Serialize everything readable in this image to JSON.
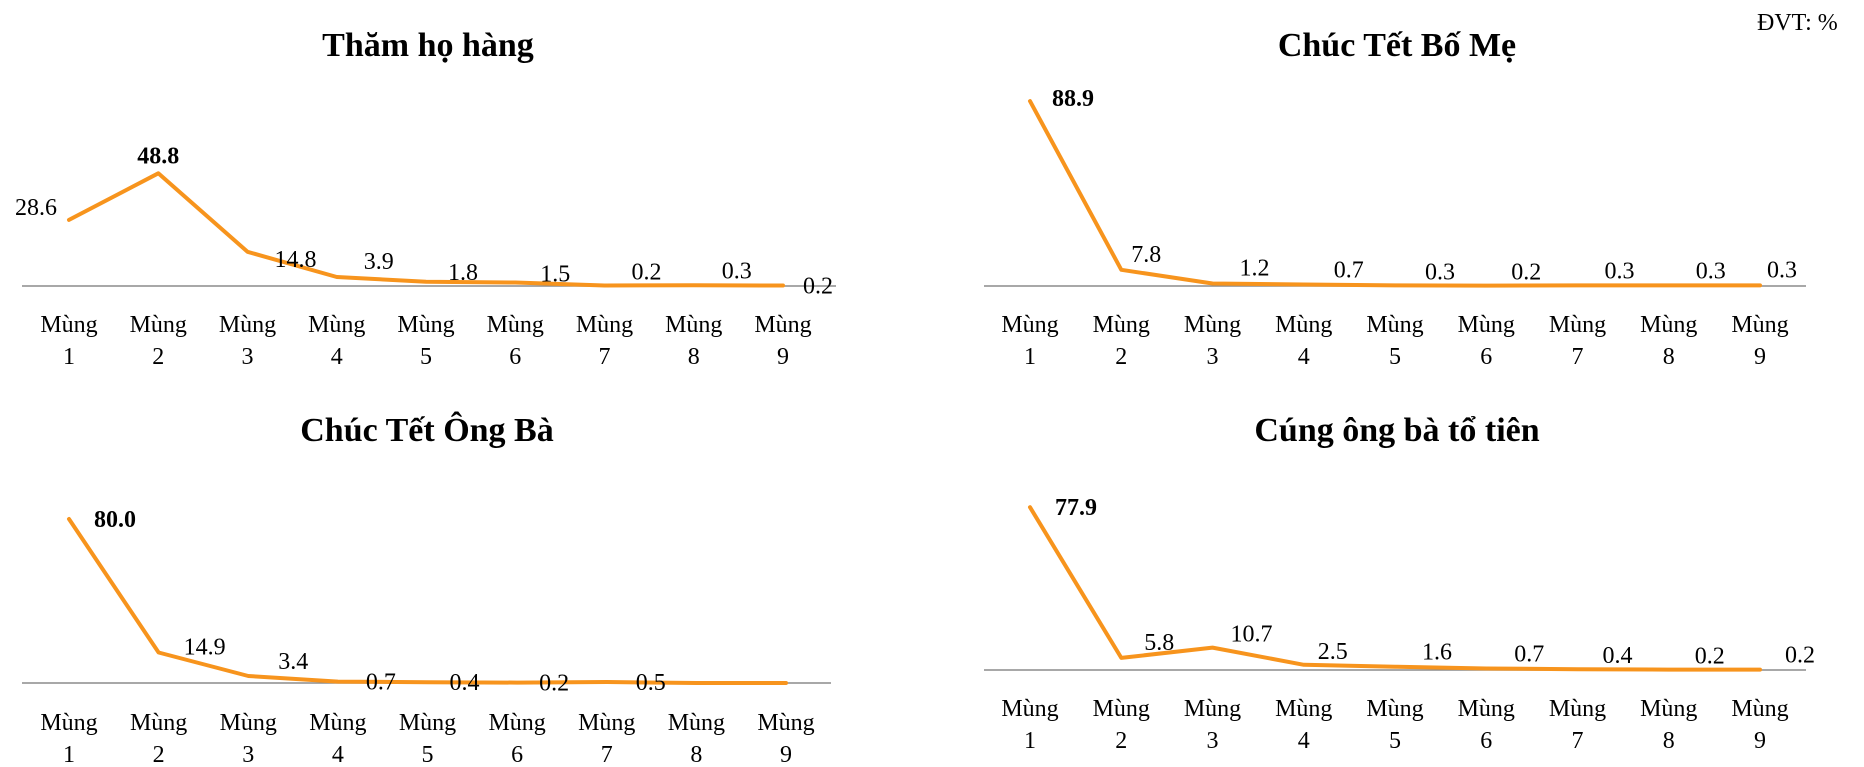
{
  "unit_label": "ĐVT: %",
  "colors": {
    "line": "#F7941D",
    "axis": "#8C8C8C",
    "text": "#000000"
  },
  "chart_data": [
    {
      "type": "line",
      "title": "Thăm họ hàng",
      "categories": [
        "Mùng 1",
        "Mùng 2",
        "Mùng 3",
        "Mùng 4",
        "Mùng 5",
        "Mùng 6",
        "Mùng 7",
        "Mùng 8",
        "Mùng 9"
      ],
      "values": [
        28.6,
        48.8,
        14.8,
        3.9,
        1.8,
        1.5,
        0.2,
        0.3,
        0.2
      ],
      "labels": [
        "28.6",
        "48.8",
        "14.8",
        "3.9",
        "1.8",
        "1.5",
        "0.2",
        "0.3",
        "0.2"
      ],
      "max_index": 1
    },
    {
      "type": "line",
      "title": "Chúc Tết Bố Mẹ",
      "categories": [
        "Mùng 1",
        "Mùng 2",
        "Mùng 3",
        "Mùng 4",
        "Mùng 5",
        "Mùng 6",
        "Mùng 7",
        "Mùng 8",
        "Mùng 9"
      ],
      "values": [
        88.9,
        7.8,
        1.2,
        0.7,
        0.3,
        0.2,
        0.3,
        0.3,
        0.3
      ],
      "labels": [
        "88.9",
        "7.8",
        "1.2",
        "0.7",
        "0.3",
        "0.2",
        "0.3",
        "0.3",
        "0.3"
      ],
      "max_index": 0
    },
    {
      "type": "line",
      "title": "Chúc Tết Ông Bà",
      "categories": [
        "Mùng 1",
        "Mùng 2",
        "Mùng 3",
        "Mùng 4",
        "Mùng 5",
        "Mùng 6",
        "Mùng 7",
        "Mùng 8",
        "Mùng 9"
      ],
      "values": [
        80.0,
        14.9,
        3.4,
        0.7,
        0.4,
        0.2,
        0.5,
        0.0,
        0.0
      ],
      "labels": [
        "80.0",
        "14.9",
        "3.4",
        "0.7",
        "0.4",
        "0.2",
        "0.5",
        "",
        ""
      ],
      "max_index": 0
    },
    {
      "type": "line",
      "title": "Cúng ông bà tổ tiên",
      "categories": [
        "Mùng 1",
        "Mùng 2",
        "Mùng 3",
        "Mùng 4",
        "Mùng 5",
        "Mùng 6",
        "Mùng 7",
        "Mùng 8",
        "Mùng 9"
      ],
      "values": [
        77.9,
        5.8,
        10.7,
        2.5,
        1.6,
        0.7,
        0.4,
        0.2,
        0.2
      ],
      "labels": [
        "77.9",
        "5.8",
        "10.7",
        "2.5",
        "1.6",
        "0.7",
        "0.4",
        "0.2",
        "0.2"
      ],
      "max_index": 0
    }
  ]
}
